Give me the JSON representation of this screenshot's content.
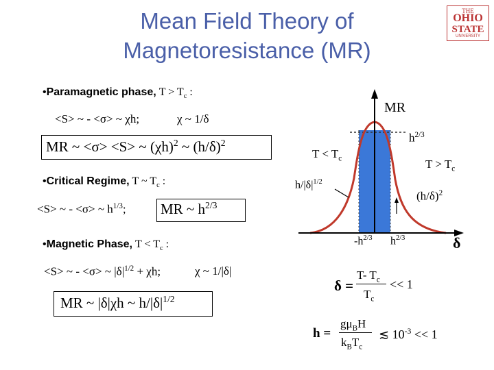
{
  "title": {
    "line1": "Mean Field Theory of",
    "line2": "Magnetoresistance (MR)"
  },
  "logo": {
    "top": "THE",
    "ohio": "OHIO",
    "state": "STATE",
    "university": "UNIVERSITY"
  },
  "paramagnetic": {
    "bullet": "•",
    "heading": "Paramagnetic phase,",
    "T": "T > T",
    "Tsub": "c",
    "colon": " :",
    "eq1": "<S> ~ - <σ> ~ χh;",
    "eq2": "χ ~ 1/δ",
    "mr_box": "MR ~ <σ> <S> ~ (χh)",
    "mr_box_sup": "2",
    "mr_box_tail": " ~ (h/δ)",
    "mr_box_tail_sup": "2"
  },
  "critical": {
    "bullet": "•",
    "heading": "Critical Regime,",
    "T": "T ~ T",
    "Tsub": "c",
    "colon": " :",
    "eq1": "<S> ~ - <σ> ~ h",
    "eq1_sup": "1/3",
    "eq1_tail": ";",
    "mr_box": "MR ~ h",
    "mr_box_sup": "2/3"
  },
  "magnetic": {
    "bullet": "•",
    "heading": "Magnetic Phase,",
    "T": "T < T",
    "Tsub": "c",
    "colon": " :",
    "eq1": "<S> ~ - <σ> ~ |δ|",
    "eq1_sup": "1/2",
    "eq1_tail": " + χh;",
    "eq2": "χ ~ 1/|δ|",
    "mr_box": "MR ~ |δ|χh ~ h/|δ|",
    "mr_box_sup": "1/2"
  },
  "graph": {
    "y_label": "MR",
    "x_label": "δ",
    "h23": "h",
    "h23_sup": "2/3",
    "T_lt": "T < T",
    "T_lt_sub": "c",
    "T_gt": "T > T",
    "T_gt_sub": "c",
    "left_label": "h/|δ|",
    "left_label_sup": "1/2",
    "right_label": "(h/δ)",
    "right_label_sup": "2",
    "tick_neg": "-h",
    "tick_neg_sup": "2/3",
    "tick_pos": "h",
    "tick_pos_sup": "2/3",
    "colors": {
      "curve": "#c0392b",
      "band": "#3b78d8",
      "axis": "#000000",
      "dashed": "#333333"
    }
  },
  "defs": {
    "delta_lhs": "δ =",
    "delta_num": "T- T",
    "delta_num_sub": "c",
    "delta_den": "T",
    "delta_den_sub": "c",
    "delta_rhs": "<< 1",
    "h_lhs": "h =",
    "h_num": "gμ",
    "h_num_sub": "B",
    "h_num_tail": "H",
    "h_den": "k",
    "h_den_sub": "B",
    "h_den_tail": "T",
    "h_den_sub2": "c",
    "h_rhs": "≲  10",
    "h_rhs_sup": "-3",
    "h_rhs_tail": " << 1"
  }
}
